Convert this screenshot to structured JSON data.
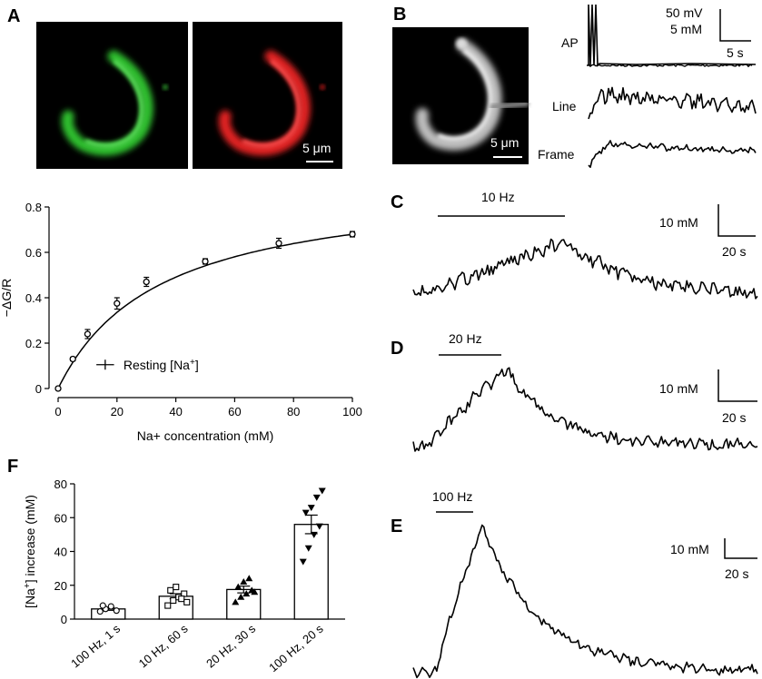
{
  "panels": {
    "A": {
      "label": "A",
      "scale_bar": "5 μm",
      "images": [
        {
          "name": "green-channel",
          "color": "#2fbf2f"
        },
        {
          "name": "red-channel",
          "color": "#e02020"
        }
      ]
    },
    "B": {
      "label": "B",
      "scale_bar": "5 μm",
      "image": {
        "name": "grayscale",
        "color": "#d8d8d8"
      },
      "traces": [
        "AP",
        "Line",
        "Frame"
      ],
      "scale_v1": "50 mV",
      "scale_v2": "5 mM",
      "scale_t": "5 s"
    },
    "C": {
      "label": "C",
      "stim": "10 Hz",
      "scale_v": "10 mM",
      "scale_t": "20 s"
    },
    "D": {
      "label": "D",
      "stim": "20 Hz",
      "scale_v": "10 mM",
      "scale_t": "20 s"
    },
    "E": {
      "label": "E",
      "stim": "100 Hz",
      "scale_v": "10 mM",
      "scale_t": "20 s"
    },
    "F": {
      "label": "F"
    }
  },
  "chart_data": [
    {
      "type": "line",
      "panel": "A",
      "xlabel": "Na+ concentration (mM)",
      "ylabel": "−ΔG/R",
      "xlim": [
        0,
        100
      ],
      "ylim": [
        0,
        0.8
      ],
      "xticks": [
        "0",
        "20",
        "40",
        "60",
        "80",
        "100"
      ],
      "yticks": [
        "0",
        "0.2",
        "0.4",
        "0.6",
        "0.8"
      ],
      "series": [
        {
          "x": [
            0,
            5,
            10,
            20,
            30,
            50,
            75,
            100
          ],
          "y": [
            0.0,
            0.13,
            0.24,
            0.375,
            0.47,
            0.56,
            0.64,
            0.68
          ],
          "err": [
            0.005,
            0.008,
            0.02,
            0.025,
            0.02,
            0.012,
            0.022,
            0.012
          ]
        }
      ],
      "fit": {
        "vmax": 0.914,
        "k": 34.5
      },
      "resting": {
        "label": "Resting [Na+]",
        "x": 16,
        "y": 0.105,
        "xerr": 3,
        "yerr": 0.022
      }
    },
    {
      "type": "bar",
      "panel": "F",
      "ylabel": "[Na+] increase (mM)",
      "ylim": [
        0,
        80
      ],
      "yticks": [
        "0",
        "20",
        "40",
        "60",
        "80"
      ],
      "categories": [
        "100 Hz, 1 s",
        "10 Hz, 60 s",
        "20 Hz, 30 s",
        "100 Hz, 20 s"
      ],
      "values": [
        6,
        13.5,
        17.5,
        56
      ],
      "err": [
        0.8,
        1.5,
        2,
        5.5
      ],
      "points": [
        [
          4.5,
          6,
          7.5,
          5,
          8
        ],
        [
          8,
          11,
          13,
          15,
          17,
          19,
          12,
          10
        ],
        [
          10,
          13,
          15,
          17,
          19,
          22,
          24,
          16
        ],
        [
          34,
          42,
          50,
          55,
          63,
          66,
          72,
          76
        ]
      ],
      "markers": [
        "circle",
        "square",
        "triangle",
        "triangle-down"
      ]
    },
    {
      "type": "line",
      "panel": "C",
      "stim_start": 0.05,
      "stim_end": 0.45,
      "peak": 0.44
    },
    {
      "type": "line",
      "panel": "D",
      "stim_start": 0.1,
      "stim_end": 0.27,
      "peak": 0.27
    },
    {
      "type": "line",
      "panel": "E",
      "stim_start": 0.06,
      "stim_end": 0.18,
      "peak": 0.2
    }
  ]
}
